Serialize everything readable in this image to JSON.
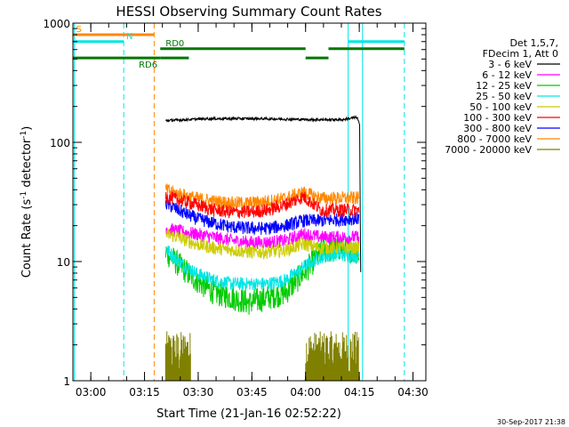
{
  "chart_data": {
    "type": "line",
    "title": "HESSI Observing Summary Count Rates",
    "xlabel": "Start Time (21-Jan-16 02:52:22)",
    "ylabel_main": "Count Rate (s",
    "ylabel_sup1": "-1",
    "ylabel_mid": " detector",
    "ylabel_sup2": "-1",
    "ylabel_end": ")",
    "yscale": "log",
    "ylim": [
      1,
      1000
    ],
    "xlim_minutes": [
      2.6,
      101.2
    ],
    "xticks": [
      {
        "label": "03:00",
        "min": 7.6
      },
      {
        "label": "03:15",
        "min": 22.6
      },
      {
        "label": "03:30",
        "min": 37.6
      },
      {
        "label": "03:45",
        "min": 52.6
      },
      {
        "label": "04:00",
        "min": 67.6
      },
      {
        "label": "04:15",
        "min": 82.6
      },
      {
        "label": "04:30",
        "min": 97.6
      }
    ],
    "yticks": [
      {
        "label": "1",
        "value": 1
      },
      {
        "label": "10",
        "value": 10
      },
      {
        "label": "100",
        "value": 100
      },
      {
        "label": "1000",
        "value": 1000
      }
    ],
    "legend": {
      "header1": "Det 1,5,7,",
      "header2": "FDecim 1, Att 0",
      "placement": "right"
    },
    "series": [
      {
        "name": "3 - 6 keV",
        "color": "#000000",
        "t": [
          28.5,
          40,
          55,
          70,
          78,
          80.5,
          82,
          82.7,
          83.0
        ],
        "y": [
          152,
          158,
          158,
          155,
          155,
          160,
          162,
          140,
          8
        ]
      },
      {
        "name": "6 - 12 keV",
        "color": "#ff00ff",
        "t": [
          28.5,
          32,
          37,
          42,
          47,
          52,
          57,
          62,
          67,
          72,
          77,
          82.5
        ],
        "y": [
          19,
          18,
          17,
          16,
          15,
          14.5,
          14.5,
          15,
          17,
          16,
          16,
          16
        ]
      },
      {
        "name": "12 - 25 keV",
        "color": "#00cc00",
        "t": [
          28.5,
          32,
          37,
          42,
          47,
          52,
          57,
          62,
          67,
          72,
          77,
          82.5
        ],
        "y": [
          12,
          9.5,
          7,
          5.5,
          5,
          4.5,
          5,
          5.5,
          8,
          12,
          13,
          12
        ]
      },
      {
        "name": "25 - 50 keV",
        "color": "#00e5e5",
        "t": [
          28.5,
          32,
          37,
          42,
          47,
          52,
          57,
          62,
          67,
          72,
          77,
          82.5
        ],
        "y": [
          13,
          10,
          8,
          7,
          6.5,
          6.5,
          6.5,
          7,
          9,
          11,
          11.5,
          11
        ]
      },
      {
        "name": "50 - 100 keV",
        "color": "#cccc00",
        "t": [
          28.5,
          32,
          37,
          42,
          47,
          52,
          57,
          62,
          67,
          72,
          77,
          82.5
        ],
        "y": [
          17,
          16,
          14,
          13,
          12.5,
          12,
          12,
          12.5,
          14,
          13,
          13,
          13
        ]
      },
      {
        "name": "100 - 300 keV",
        "color": "#ff0000",
        "t": [
          28.5,
          32,
          37,
          42,
          47,
          52,
          57,
          62,
          67,
          72,
          77,
          82.5
        ],
        "y": [
          35,
          33,
          30,
          27,
          26,
          26,
          27,
          30,
          35,
          27,
          27,
          27
        ]
      },
      {
        "name": "300 - 800 keV",
        "color": "#0000ff",
        "t": [
          28.5,
          32,
          37,
          42,
          47,
          52,
          57,
          62,
          67,
          72,
          77,
          82.5
        ],
        "y": [
          31,
          27,
          23,
          21,
          19.5,
          19,
          19,
          20,
          22,
          22,
          22.5,
          23
        ]
      },
      {
        "name": "800 - 7000 keV",
        "color": "#ff8800",
        "t": [
          28.5,
          32,
          37,
          42,
          47,
          52,
          57,
          62,
          67,
          72,
          77,
          82.5
        ],
        "y": [
          40,
          37,
          34,
          32,
          31,
          31,
          32,
          34,
          38,
          34,
          34,
          34
        ]
      },
      {
        "name": "7000 - 20000 keV",
        "color": "#808000",
        "segments": [
          [
            28.5,
            35.5
          ],
          [
            67.5,
            82.5
          ]
        ],
        "y_low": 1,
        "y_high": 2.6
      }
    ],
    "flags": [
      {
        "name": "S",
        "color": "#ff8800",
        "label_min": 3.5,
        "segments": [
          [
            2.6,
            25.3
          ]
        ],
        "value": 800
      },
      {
        "name": "N",
        "color": "#00e5e5",
        "label_min": 17.5,
        "segments": [
          [
            2.6,
            16.8
          ],
          [
            79.5,
            95.2
          ]
        ],
        "value": 700
      },
      {
        "name": "RD0",
        "color": "#007700",
        "label_min": 28.5,
        "segments": [
          [
            27.0,
            35.0
          ],
          [
            35.0,
            67.6
          ],
          [
            74.0,
            95.2
          ]
        ],
        "value": 610
      },
      {
        "name": "RD6",
        "color": "#007700",
        "label_min": 21.0,
        "segments": [
          [
            2.6,
            27.0
          ],
          [
            27.0,
            35.0
          ],
          [
            67.6,
            74.0
          ]
        ],
        "value": 510
      }
    ],
    "vlines": [
      {
        "min": 3.0,
        "color": "#00e5e5",
        "style": "solid"
      },
      {
        "min": 16.8,
        "color": "#00e5e5",
        "style": "dashed"
      },
      {
        "min": 25.3,
        "color": "#ff8800",
        "style": "dashed"
      },
      {
        "min": 79.5,
        "color": "#00e5e5",
        "style": "solid"
      },
      {
        "min": 83.5,
        "color": "#00e5e5",
        "style": "solid"
      },
      {
        "min": 95.2,
        "color": "#00e5e5",
        "style": "dashed"
      }
    ],
    "footer": "30-Sep-2017 21:38"
  }
}
